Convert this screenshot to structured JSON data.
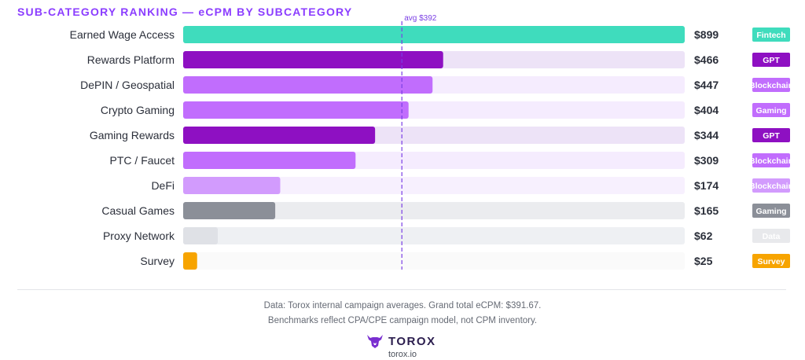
{
  "title": "SUB-CATEGORY RANKING — eCPM BY SUBCATEGORY",
  "footer": {
    "note_line1": "Data: Torox internal campaign averages. Grand total eCPM: $391.67.",
    "note_line2": "Benchmarks reflect CPA/CPE campaign model, not CPM inventory.",
    "brand": "TOROX",
    "url": "torox.io",
    "logo_icon": "bull-head-icon"
  },
  "colors": {
    "fintech": "#3fdcbd",
    "gpt": "#8e10c2",
    "blockchain": "#c16dfd",
    "gaming": "#c16dfd",
    "defi": "#d29bfd",
    "casual": "#8b8f98",
    "data": "#dfe1e6",
    "survey": "#f7a400",
    "avg_line": "#7b3fe4"
  },
  "chart_data": {
    "type": "bar",
    "orientation": "horizontal",
    "title": "SUB-CATEGORY RANKING — eCPM BY SUBCATEGORY",
    "xlim": [
      0,
      899
    ],
    "categories": [
      "Earned Wage Access",
      "Rewards Platform",
      "DePIN / Geospatial",
      "Crypto Gaming",
      "Gaming Rewards",
      "PTC / Faucet",
      "DeFi",
      "Casual Games",
      "Proxy Network",
      "Survey"
    ],
    "values": [
      899,
      466,
      447,
      404,
      344,
      309,
      174,
      165,
      62,
      25
    ],
    "value_labels": [
      "$899",
      "$466",
      "$447",
      "$404",
      "$344",
      "$309",
      "$174",
      "$165",
      "$62",
      "$25"
    ],
    "tags": [
      "Fintech",
      "GPT",
      "Blockchain",
      "Gaming",
      "GPT",
      "Blockchain",
      "Blockchain",
      "Gaming",
      "Data",
      "Survey"
    ],
    "bar_colors": [
      "#3fdcbd",
      "#8e10c2",
      "#c16dfd",
      "#c16dfd",
      "#8e10c2",
      "#c16dfd",
      "#d29bfd",
      "#8b8f98",
      "#dfe1e6",
      "#f7a400"
    ],
    "track_colors": [
      "#d8f7f0",
      "#ede3f7",
      "#f5ecfe",
      "#f5ecfe",
      "#ede3f7",
      "#f5ecfe",
      "#f7f0fe",
      "#ebecef",
      "#eef0f3",
      "#fafafa"
    ],
    "badge_colors": [
      "#3fdcbd",
      "#8e10c2",
      "#c16dfd",
      "#c16dfd",
      "#8e10c2",
      "#c16dfd",
      "#d29bfd",
      "#8b8f98",
      "#e8e9ec",
      "#f7a400"
    ],
    "badge_text_colors": [
      "#ffffff",
      "#ffffff",
      "#ffffff",
      "#ffffff",
      "#ffffff",
      "#ffffff",
      "#ffffff",
      "#ffffff",
      "#ffffff",
      "#ffffff"
    ],
    "avg": {
      "value": 392,
      "label": "avg $392"
    },
    "grid": false,
    "legend": "none"
  }
}
